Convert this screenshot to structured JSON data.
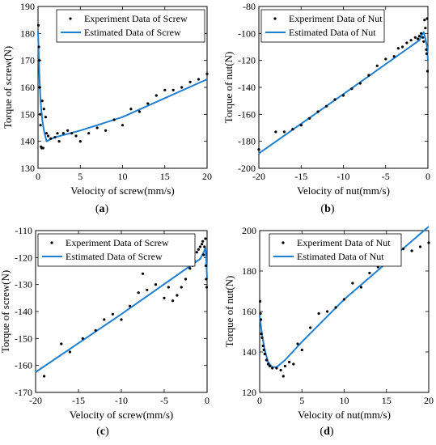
{
  "chart_data": [
    {
      "id": "a",
      "type": "scatter",
      "caption": "a",
      "xlabel": "Velocity of screw(mm/s)",
      "ylabel": "Torque of screw(N)",
      "xlim": [
        0,
        20
      ],
      "ylim": [
        130,
        190
      ],
      "xticks": [
        0,
        5,
        10,
        15,
        20
      ],
      "yticks": [
        130,
        140,
        150,
        160,
        170,
        180,
        190
      ],
      "legend": [
        "Experiment Data of Screw",
        "Estimated Data of Screw"
      ],
      "legend_position": "top-right",
      "series": [
        {
          "name": "Experiment Data of Screw",
          "kind": "points",
          "points": [
            [
              0.05,
              183
            ],
            [
              0.1,
              175
            ],
            [
              0.15,
              170
            ],
            [
              0.2,
              160
            ],
            [
              0.25,
              150
            ],
            [
              0.3,
              146
            ],
            [
              0.35,
              138
            ],
            [
              0.45,
              137.5
            ],
            [
              0.6,
              137.5
            ],
            [
              0.5,
              155
            ],
            [
              0.7,
              152
            ],
            [
              0.9,
              149
            ],
            [
              1.0,
              143
            ],
            [
              1.2,
              142
            ],
            [
              1.5,
              141
            ],
            [
              2.0,
              141.5
            ],
            [
              2.3,
              143
            ],
            [
              2.5,
              140
            ],
            [
              3.0,
              143
            ],
            [
              3.5,
              144
            ],
            [
              4.0,
              143
            ],
            [
              4.5,
              142
            ],
            [
              5.0,
              140
            ],
            [
              6.0,
              143
            ],
            [
              7.0,
              145
            ],
            [
              8.0,
              144
            ],
            [
              9.0,
              148
            ],
            [
              10.0,
              146
            ],
            [
              11.0,
              152
            ],
            [
              12.0,
              151
            ],
            [
              13.0,
              154
            ],
            [
              14.0,
              157
            ],
            [
              15.0,
              159
            ],
            [
              16.0,
              159
            ],
            [
              17.0,
              160
            ],
            [
              18.0,
              162
            ],
            [
              19.0,
              163
            ],
            [
              20.0,
              165
            ]
          ]
        },
        {
          "name": "Estimated Data of Screw",
          "kind": "line",
          "points": [
            [
              0,
              181
            ],
            [
              0.15,
              165
            ],
            [
              0.3,
              155
            ],
            [
              0.5,
              148
            ],
            [
              0.7,
              144
            ],
            [
              1.0,
              140
            ],
            [
              1.3,
              140.5
            ],
            [
              2,
              141.5
            ],
            [
              5,
              144
            ],
            [
              10,
              149
            ],
            [
              15,
              156
            ],
            [
              20,
              163
            ]
          ]
        }
      ]
    },
    {
      "id": "b",
      "type": "scatter",
      "caption": "b",
      "xlabel": "Velocity of nut(mm/s)",
      "ylabel": "Torque of nut(N)",
      "xlim": [
        -20,
        0
      ],
      "ylim": [
        -200,
        -80
      ],
      "xticks": [
        -20,
        -15,
        -10,
        -5,
        0
      ],
      "yticks": [
        -200,
        -180,
        -160,
        -140,
        -120,
        -100,
        -80
      ],
      "legend": [
        "Experiment Data of Nut",
        "Estimated Data of Nut"
      ],
      "legend_position": "top-left",
      "series": [
        {
          "name": "Experiment Data of Nut",
          "kind": "points",
          "points": [
            [
              -20,
              -186
            ],
            [
              -18,
              -173
            ],
            [
              -17,
              -173
            ],
            [
              -16,
              -171
            ],
            [
              -15,
              -168
            ],
            [
              -14,
              -163
            ],
            [
              -13,
              -158
            ],
            [
              -12,
              -154
            ],
            [
              -11,
              -149
            ],
            [
              -10,
              -146
            ],
            [
              -9,
              -141
            ],
            [
              -8,
              -137
            ],
            [
              -7,
              -131
            ],
            [
              -6,
              -124
            ],
            [
              -5,
              -119
            ],
            [
              -4,
              -117
            ],
            [
              -3.5,
              -111
            ],
            [
              -3,
              -110
            ],
            [
              -2.5,
              -107
            ],
            [
              -2,
              -105
            ],
            [
              -1.5,
              -103
            ],
            [
              -1.2,
              -104
            ],
            [
              -1,
              -102
            ],
            [
              -0.8,
              -100
            ],
            [
              -0.6,
              -103
            ],
            [
              -0.5,
              -106
            ],
            [
              -0.4,
              -90
            ],
            [
              -0.3,
              -96
            ],
            [
              -0.2,
              -112
            ],
            [
              -0.15,
              -115
            ],
            [
              -0.1,
              -89
            ],
            [
              -0.05,
              -128
            ]
          ]
        },
        {
          "name": "Estimated Data of Nut",
          "kind": "line",
          "points": [
            [
              -20,
              -189
            ],
            [
              -10,
              -145
            ],
            [
              -1,
              -105
            ],
            [
              -0.7,
              -101
            ],
            [
              -0.5,
              -99
            ],
            [
              -0.3,
              -104
            ],
            [
              -0.1,
              -110
            ],
            [
              0,
              -120
            ]
          ]
        }
      ]
    },
    {
      "id": "c",
      "type": "scatter",
      "caption": "c",
      "xlabel": "Velocity of screw(mm/s)",
      "ylabel": "Torque of screw(N)",
      "xlim": [
        -20,
        0
      ],
      "ylim": [
        -170,
        -110
      ],
      "xticks": [
        -20,
        -15,
        -10,
        -5,
        0
      ],
      "yticks": [
        -170,
        -160,
        -150,
        -140,
        -130,
        -120,
        -110
      ],
      "legend": [
        "Experiment Data of Screw",
        "Estimated Data of Screw"
      ],
      "legend_position": "top-left",
      "series": [
        {
          "name": "Experiment Data of Screw",
          "kind": "points",
          "points": [
            [
              -19,
              -164
            ],
            [
              -17,
              -152
            ],
            [
              -16,
              -155
            ],
            [
              -14.5,
              -150
            ],
            [
              -13,
              -147
            ],
            [
              -12,
              -143
            ],
            [
              -11,
              -141
            ],
            [
              -10,
              -143
            ],
            [
              -9,
              -138
            ],
            [
              -8,
              -133
            ],
            [
              -7.5,
              -126
            ],
            [
              -7,
              -132
            ],
            [
              -6,
              -130
            ],
            [
              -5,
              -135
            ],
            [
              -4.5,
              -131
            ],
            [
              -4,
              -136
            ],
            [
              -3.5,
              -134
            ],
            [
              -3,
              -131
            ],
            [
              -2.5,
              -128
            ],
            [
              -2,
              -124
            ],
            [
              -1.7,
              -123
            ],
            [
              -1.5,
              -121
            ],
            [
              -1.2,
              -118
            ],
            [
              -1,
              -117
            ],
            [
              -0.8,
              -116
            ],
            [
              -0.6,
              -115
            ],
            [
              -0.5,
              -114
            ],
            [
              -0.4,
              -119
            ],
            [
              -0.3,
              -116
            ],
            [
              -0.2,
              -113
            ],
            [
              -0.15,
              -123
            ],
            [
              -0.1,
              -128
            ],
            [
              -0.05,
              -131
            ]
          ]
        },
        {
          "name": "Estimated Data of Screw",
          "kind": "line",
          "points": [
            [
              -20,
              -162.5
            ],
            [
              -10,
              -141
            ],
            [
              -0.8,
              -120.5
            ],
            [
              -0.4,
              -118
            ],
            [
              -0.2,
              -116.5
            ],
            [
              -0.1,
              -120
            ],
            [
              0,
              -128
            ]
          ]
        }
      ]
    },
    {
      "id": "d",
      "type": "scatter",
      "caption": "d",
      "xlabel": "Velocity of nut(mm/s)",
      "ylabel": "Torque of nut(N)",
      "xlim": [
        0,
        20
      ],
      "ylim": [
        120,
        200
      ],
      "xticks": [
        0,
        5,
        10,
        15,
        20
      ],
      "yticks": [
        120,
        140,
        160,
        180,
        200
      ],
      "legend": [
        "Experiment Data of Nut",
        "Estimated Data of Nut"
      ],
      "legend_position": "top-right",
      "series": [
        {
          "name": "Experiment Data of Nut",
          "kind": "points",
          "points": [
            [
              0.05,
              165
            ],
            [
              0.1,
              159
            ],
            [
              0.15,
              156
            ],
            [
              0.2,
              149
            ],
            [
              0.3,
              147
            ],
            [
              0.4,
              143
            ],
            [
              0.5,
              141
            ],
            [
              0.6,
              139
            ],
            [
              0.8,
              136
            ],
            [
              1.0,
              134
            ],
            [
              1.2,
              133
            ],
            [
              1.5,
              132
            ],
            [
              2.0,
              132
            ],
            [
              2.5,
              131
            ],
            [
              2.8,
              128
            ],
            [
              3.0,
              133
            ],
            [
              3.5,
              135
            ],
            [
              4.0,
              134
            ],
            [
              4.5,
              144
            ],
            [
              5.0,
              141
            ],
            [
              6.0,
              152
            ],
            [
              7.0,
              159
            ],
            [
              8.0,
              160
            ],
            [
              9.0,
              162
            ],
            [
              10.0,
              166
            ],
            [
              11.0,
              174
            ],
            [
              12.0,
              172
            ],
            [
              13.0,
              179
            ],
            [
              14.0,
              182
            ],
            [
              15.0,
              185
            ],
            [
              16.0,
              186
            ],
            [
              17.0,
              191
            ],
            [
              18.0,
              190
            ],
            [
              19.0,
              192
            ],
            [
              20.0,
              194
            ]
          ]
        },
        {
          "name": "Estimated Data of Nut",
          "kind": "line",
          "points": [
            [
              0,
              158
            ],
            [
              0.3,
              148
            ],
            [
              0.6,
              141
            ],
            [
              1.0,
              135
            ],
            [
              1.5,
              132.5
            ],
            [
              2.0,
              132.5
            ],
            [
              3.0,
              136
            ],
            [
              5.0,
              145
            ],
            [
              10.0,
              166
            ],
            [
              15.0,
              184
            ],
            [
              20.0,
              202
            ]
          ]
        }
      ]
    }
  ]
}
